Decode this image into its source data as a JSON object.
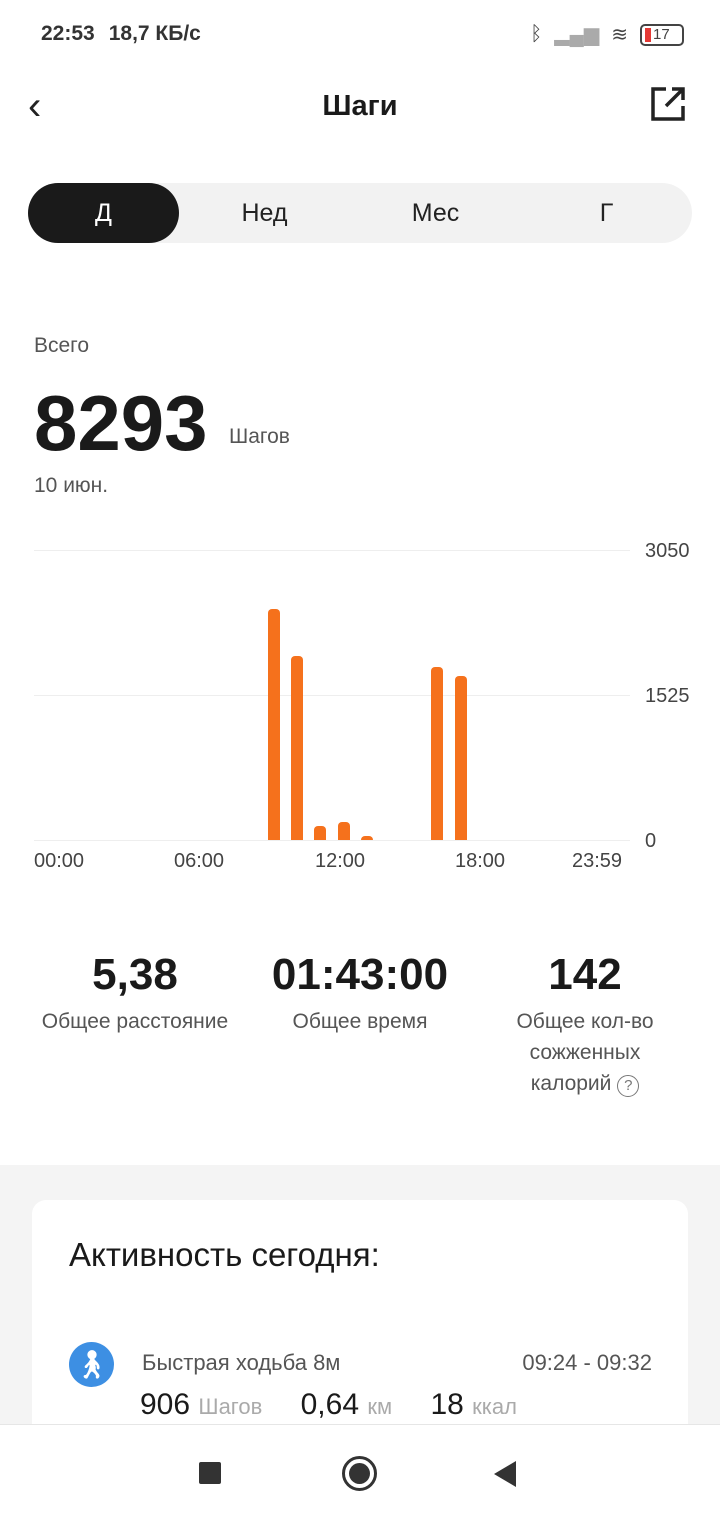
{
  "status_bar": {
    "time": "22:53",
    "speed": "18,7 КБ/с",
    "battery": "17"
  },
  "header": {
    "title": "Шаги"
  },
  "tabs": [
    {
      "label": "Д",
      "active": true
    },
    {
      "label": "Нед"
    },
    {
      "label": "Мес"
    },
    {
      "label": "Г"
    }
  ],
  "summary": {
    "label": "Всего",
    "value": "8293",
    "unit": "Шагов",
    "date": "10 июн."
  },
  "chart_data": {
    "type": "bar",
    "x_unit": "hour",
    "xlim": [
      "00:00",
      "23:59"
    ],
    "ylim": [
      0,
      3050
    ],
    "y_ticks": [
      "3050",
      "1525",
      "0"
    ],
    "x_ticks": [
      "00:00",
      "06:00",
      "12:00",
      "18:00",
      "23:59"
    ],
    "grid": true,
    "bar_color": "#f5711c",
    "hours": [
      9,
      10,
      11,
      12,
      13,
      16,
      17
    ],
    "values": [
      2432,
      1936,
      148,
      191,
      43,
      1819,
      1724
    ]
  },
  "stats": [
    {
      "value": "5,38",
      "label": "Общее расстояние"
    },
    {
      "value": "01:43:00",
      "label": "Общее время"
    },
    {
      "value": "142",
      "label": "Общее кол-во сожженных калорий"
    }
  ],
  "activity": {
    "title": "Активность сегодня:",
    "items": [
      {
        "name": "Быстрая ходьба 8м",
        "time": "09:24 - 09:32",
        "steps": "906",
        "steps_unit": "Шагов",
        "distance": "0,64",
        "distance_unit": "км",
        "kcal": "18",
        "kcal_unit": "ккал",
        "icon": "walking-icon",
        "icon_color": "#3d8fe3"
      }
    ]
  }
}
